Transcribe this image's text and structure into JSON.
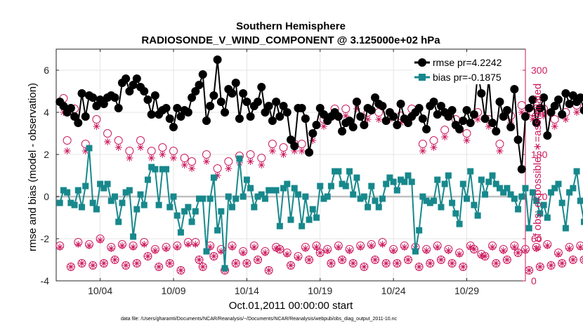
{
  "chart_data": {
    "type": "line",
    "title": "Southern Hemisphere",
    "subtitle": "RADIOSONDE_V_WIND_COMPONENT @ 3.125000e+02 hPa",
    "xlabel": "Oct.01,2011 00:00:00 start",
    "ylabel_left": "rmse and bias (model - observation)",
    "ylabel_right": "# of obs: o=possible; ∗=assimilated",
    "xlim": [
      1,
      33
    ],
    "ylim_left": [
      -4,
      7
    ],
    "ylim_right": [
      0,
      330
    ],
    "x_ticks": [
      4,
      9,
      14,
      19,
      24,
      29
    ],
    "x_tick_labels": [
      "10/04",
      "10/09",
      "10/14",
      "10/19",
      "10/24",
      "10/29"
    ],
    "y_ticks_left": [
      -4,
      -2,
      0,
      2,
      4,
      6
    ],
    "y_ticks_right": [
      0,
      60,
      120,
      180,
      240,
      300
    ],
    "legend": {
      "position": "top-right",
      "entries": [
        "rmse pr=4.2242",
        "bias pr=-0.1875"
      ]
    },
    "colors": {
      "rmse": "#000000",
      "bias": "#17888c",
      "obs": "#cc1a5e",
      "zero_line": "#c0c0c0"
    },
    "time_step_days": 0.25,
    "series": [
      {
        "name": "rmse",
        "axis": "left",
        "values": [
          4.5,
          4.3,
          4.0,
          4.2,
          3.8,
          3.5,
          4.9,
          3.8,
          4.8,
          4.7,
          4.3,
          4.6,
          4.4,
          4.7,
          4.8,
          4.7,
          4.2,
          5.4,
          5.6,
          5.0,
          5.3,
          5.6,
          5.2,
          5.0,
          4.6,
          3.9,
          4.8,
          3.9,
          4.1,
          4.2,
          3.7,
          3.3,
          4.2,
          3.8,
          4.1,
          4.0,
          4.7,
          5.0,
          5.3,
          5.8,
          3.6,
          4.3,
          4.8,
          6.5,
          4.5,
          4.0,
          5.1,
          4.9,
          5.4,
          3.7,
          4.9,
          4.5,
          3.8,
          4.3,
          4.5,
          5.2,
          4.0,
          4.3,
          3.6,
          4.5,
          3.8,
          4.3,
          4.0,
          2.7,
          2.4,
          4.2,
          4.2,
          3.7,
          2.1,
          3.0,
          3.4,
          4.2,
          3.9,
          3.6,
          3.8,
          4.0,
          3.8,
          3.1,
          3.5,
          3.6,
          3.3,
          4.5,
          3.8,
          3.4,
          4.2,
          4.1,
          4.7,
          4.4,
          4.3,
          3.6,
          4.0,
          3.8,
          3.4,
          4.4,
          3.7,
          3.5,
          3.8,
          4.0,
          4.2,
          3.7,
          3.2,
          4.3,
          4.5,
          3.9,
          4.3,
          4.0,
          3.8,
          4.1,
          3.4,
          3.2,
          3.6,
          4.1,
          3.5,
          3.9,
          5.9,
          4.9,
          3.7,
          5.6,
          3.5,
          3.1,
          4.5,
          3.8,
          4.1,
          3.3,
          5.1,
          2.7,
          1.3,
          3.8,
          4.2,
          4.6,
          3.5,
          4.2,
          4.7,
          2.9,
          4.0,
          4.3,
          4.6,
          3.9,
          4.9,
          4.4,
          4.8,
          4.5,
          4.7,
          4.1,
          4.3,
          5.5,
          4.9,
          4.1,
          4.6,
          3.7,
          4.9,
          4.7,
          3.3
        ]
      },
      {
        "name": "bias",
        "axis": "left",
        "values": [
          -0.3,
          0.3,
          0.2,
          -0.3,
          -0.4,
          0.3,
          -0.5,
          0.5,
          2.3,
          -0.3,
          -0.6,
          0.6,
          0.4,
          0.6,
          -0.2,
          0.0,
          -1.2,
          -0.3,
          0.2,
          0.3,
          -1.9,
          -0.6,
          0.1,
          -0.4,
          0.8,
          1.4,
          1.3,
          -0.4,
          1.3,
          1.3,
          -0.5,
          0.0,
          -0.9,
          -1.7,
          -0.7,
          -0.5,
          -1.2,
          -0.7,
          -0.1,
          -0.1,
          -2.6,
          -0.1,
          0.9,
          -1.6,
          -0.7,
          -3.4,
          0.0,
          -0.5,
          -0.1,
          1.8,
          0.0,
          0.8,
          0.4,
          -0.5,
          0.0,
          0.1,
          -0.1,
          0.3,
          0.3,
          0.3,
          -1.4,
          0.4,
          0.6,
          -1.1,
          0.4,
          0.1,
          -1.4,
          0.0,
          -1.1,
          -0.6,
          -1.0,
          0.5,
          -0.1,
          0.0,
          0.5,
          1.2,
          1.2,
          0.6,
          0.5,
          1.2,
          0.1,
          0.9,
          -0.1,
          0.0,
          -0.5,
          0.5,
          -0.2,
          -0.5,
          -0.1,
          0.6,
          0.9,
          0.7,
          0.3,
          0.8,
          0.7,
          1.0,
          0.7,
          -2.6,
          -1.6,
          0.0,
          -0.2,
          -0.3,
          -0.2,
          0.8,
          -0.5,
          0.6,
          1.0,
          -0.3,
          -0.8,
          -1.3,
          0.6,
          -0.1,
          1.2,
          -0.4,
          -0.9,
          0.8,
          0.1,
          0.7,
          1.0,
          0.6,
          0.4,
          0.2,
          0.4,
          0.1,
          -0.1,
          -0.6,
          0.0,
          0.4,
          -1.5,
          0.2,
          -0.2,
          -0.8,
          -0.4,
          -1.0,
          0.2,
          0.4,
          0.6,
          -0.3,
          -1.5,
          0.2,
          0.4,
          1.2,
          -0.2,
          -1.2,
          -0.4,
          -0.3,
          -0.2,
          -0.6,
          -0.8,
          -0.2,
          0.2,
          -0.4,
          -0.5,
          -0.3
        ]
      },
      {
        "name": "obs_possible",
        "axis": "right",
        "marker": "o",
        "values": [
          50,
          260,
          200,
          20,
          245,
          55,
          25,
          195,
          52,
          22,
          230,
          60,
          25,
          210,
          48,
          30,
          200,
          52,
          22,
          185,
          50,
          25,
          200,
          55,
          35,
          185,
          45,
          20,
          190,
          48,
          25,
          185,
          50,
          15,
          175,
          55,
          170,
          55,
          30,
          20,
          180,
          50,
          35,
          160,
          45,
          15,
          170,
          50,
          25,
          178,
          42,
          25,
          180,
          50,
          30,
          175,
          42,
          15,
          195,
          48,
          45,
          190,
          40,
          22,
          195,
          35,
          195,
          48,
          30,
          210,
          50,
          40,
          230,
          45,
          25,
          245,
          50,
          30,
          245,
          45,
          25,
          255,
          50,
          20,
          240,
          52,
          30,
          240,
          55,
          25,
          240,
          45,
          25,
          235,
          50,
          30,
          245,
          48,
          20,
          195,
          45,
          25,
          200,
          50,
          30,
          215,
          45,
          25,
          230,
          40,
          20,
          210,
          50,
          45,
          240,
          38,
          35,
          230,
          50,
          25,
          195,
          45,
          30,
          235,
          50,
          40,
          250,
          45,
          15,
          240,
          48,
          20,
          245,
          52,
          22,
          230,
          40,
          25,
          240,
          48,
          30,
          250,
          50,
          30,
          190,
          45,
          25,
          250,
          55,
          20,
          230,
          50,
          0
        ]
      },
      {
        "name": "obs_assimilated",
        "axis": "right",
        "marker": "*",
        "values": [
          48,
          240,
          185,
          20,
          235,
          52,
          25,
          185,
          50,
          22,
          220,
          58,
          25,
          198,
          46,
          30,
          190,
          50,
          22,
          175,
          48,
          25,
          190,
          52,
          35,
          175,
          43,
          20,
          180,
          46,
          25,
          175,
          48,
          15,
          165,
          52,
          160,
          52,
          30,
          20,
          170,
          48,
          35,
          150,
          42,
          15,
          160,
          48,
          25,
          168,
          40,
          25,
          170,
          48,
          30,
          165,
          40,
          15,
          185,
          46,
          45,
          180,
          38,
          22,
          185,
          33,
          185,
          46,
          30,
          200,
          48,
          40,
          220,
          43,
          25,
          235,
          48,
          30,
          235,
          43,
          25,
          245,
          48,
          20,
          230,
          50,
          30,
          230,
          52,
          25,
          230,
          43,
          25,
          225,
          48,
          30,
          235,
          46,
          20,
          185,
          43,
          25,
          190,
          48,
          30,
          205,
          43,
          25,
          220,
          38,
          20,
          200,
          48,
          45,
          230,
          36,
          35,
          220,
          48,
          25,
          185,
          43,
          30,
          225,
          48,
          40,
          240,
          43,
          15,
          230,
          46,
          20,
          235,
          50,
          22,
          220,
          38,
          25,
          230,
          46,
          30,
          240,
          48,
          30,
          180,
          43,
          25,
          240,
          52,
          20,
          220,
          48,
          0
        ]
      }
    ]
  },
  "footnote": "data file: /Users/gharamti/Documents/NCAR/Reanalysis/~/Documents/NCAR/Reanalysis/webpub/obs_diag_output_2011-10.nc"
}
